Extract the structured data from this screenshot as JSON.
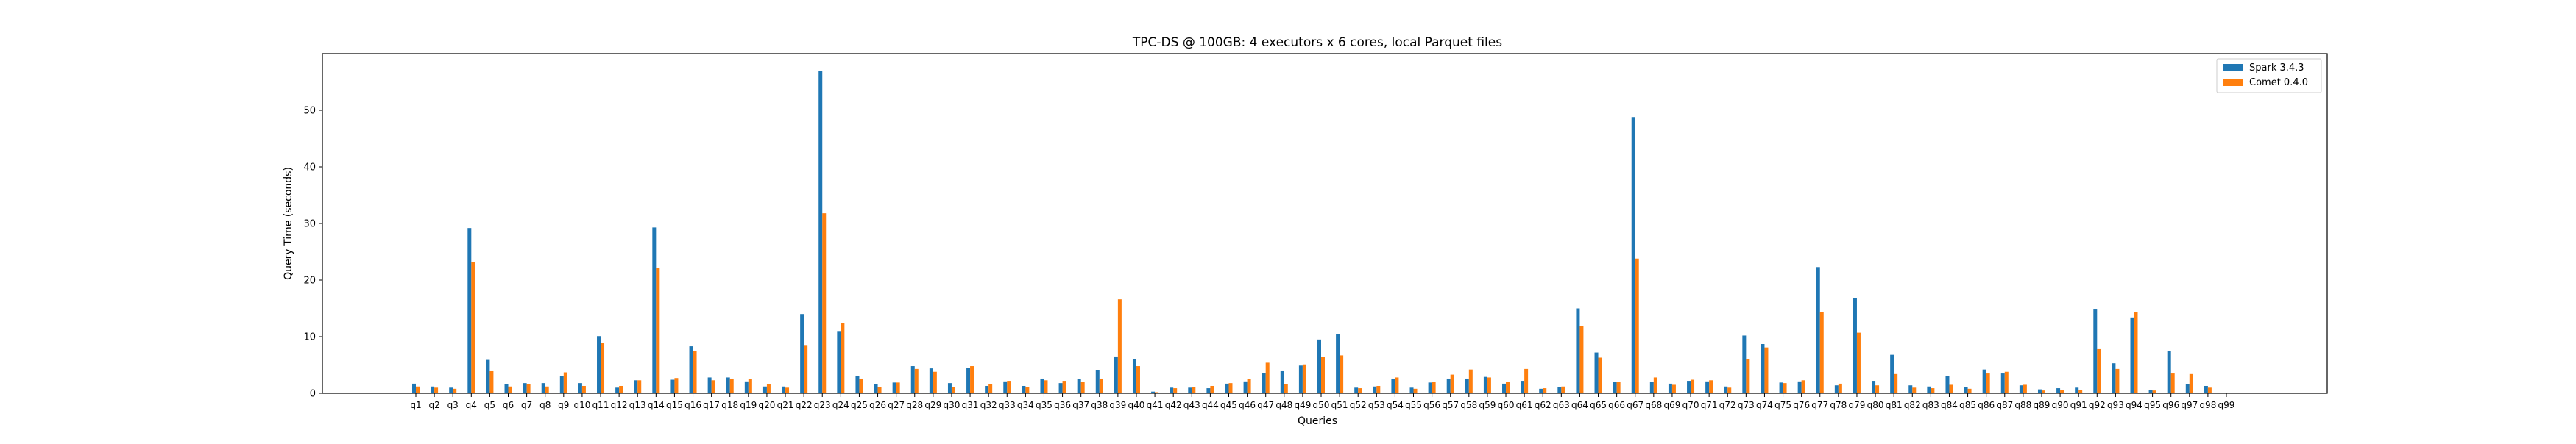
{
  "chart_data": {
    "type": "bar",
    "title": "TPC-DS @ 100GB: 4 executors x 6 cores, local Parquet files",
    "xlabel": "Queries",
    "ylabel": "Query Time (seconds)",
    "ylim": [
      0,
      60
    ],
    "yticks": [
      0,
      10,
      20,
      30,
      40,
      50
    ],
    "legend_position": "top-right",
    "grid": false,
    "categories": [
      "q1",
      "q2",
      "q3",
      "q4",
      "q5",
      "q6",
      "q7",
      "q8",
      "q9",
      "q10",
      "q11",
      "q12",
      "q13",
      "q14",
      "q15",
      "q16",
      "q17",
      "q18",
      "q19",
      "q20",
      "q21",
      "q22",
      "q23",
      "q24",
      "q25",
      "q26",
      "q27",
      "q28",
      "q29",
      "q30",
      "q31",
      "q32",
      "q33",
      "q34",
      "q35",
      "q36",
      "q37",
      "q38",
      "q39",
      "q40",
      "q41",
      "q42",
      "q43",
      "q44",
      "q45",
      "q46",
      "q47",
      "q48",
      "q49",
      "q50",
      "q51",
      "q52",
      "q53",
      "q54",
      "q55",
      "q56",
      "q57",
      "q58",
      "q59",
      "q60",
      "q61",
      "q62",
      "q63",
      "q64",
      "q65",
      "q66",
      "q67",
      "q68",
      "q69",
      "q70",
      "q71",
      "q72",
      "q73",
      "q74",
      "q75",
      "q76",
      "q77",
      "q78",
      "q79",
      "q80",
      "q81",
      "q82",
      "q83",
      "q84",
      "q85",
      "q86",
      "q87",
      "q88",
      "q89",
      "q90",
      "q91",
      "q92",
      "q93",
      "q94",
      "q95",
      "q96",
      "q97",
      "q98",
      "q99"
    ],
    "series": [
      {
        "name": "Spark 3.4.3",
        "color": "#1f77b4",
        "values": [
          1.7,
          1.2,
          1.0,
          29.2,
          5.9,
          1.6,
          1.8,
          1.8,
          3.0,
          1.8,
          10.1,
          1.0,
          2.3,
          29.3,
          2.4,
          8.3,
          2.8,
          2.8,
          2.1,
          1.2,
          1.2,
          14.0,
          57.0,
          11.0,
          3.0,
          1.6,
          1.9,
          4.8,
          4.4,
          1.8,
          4.5,
          1.3,
          2.1,
          1.3,
          2.6,
          1.8,
          2.5,
          4.1,
          6.5,
          6.1,
          0.3,
          1.0,
          1.0,
          0.9,
          1.7,
          2.1,
          3.6,
          3.9,
          4.9,
          9.5,
          10.5,
          1.0,
          1.2,
          2.6,
          1.0,
          1.9,
          2.6,
          2.6,
          2.9,
          1.7,
          2.2,
          0.8,
          1.1,
          15.0,
          7.2,
          2.0,
          48.8,
          2.0,
          1.7,
          2.2,
          2.1,
          1.2,
          10.2,
          8.7,
          1.9,
          2.1,
          22.3,
          1.4,
          16.8,
          2.2,
          6.8,
          1.4,
          1.2,
          3.1,
          1.1,
          4.2,
          3.5,
          1.4,
          0.7,
          0.9,
          1.0,
          14.8,
          5.3,
          13.4,
          0.6,
          7.5,
          1.6,
          1.3,
          0.0
        ]
      },
      {
        "name": "Comet 0.4.0",
        "color": "#ff7f0e",
        "values": [
          1.2,
          1.0,
          0.8,
          23.2,
          3.9,
          1.2,
          1.6,
          1.2,
          3.7,
          1.3,
          8.9,
          1.3,
          2.3,
          22.2,
          2.7,
          7.5,
          2.3,
          2.6,
          2.5,
          1.6,
          1.0,
          8.4,
          31.8,
          12.4,
          2.6,
          1.1,
          1.9,
          4.3,
          3.8,
          1.1,
          4.8,
          1.6,
          2.2,
          1.1,
          2.3,
          2.2,
          2.0,
          2.6,
          16.6,
          4.8,
          0.2,
          0.9,
          1.1,
          1.3,
          1.8,
          2.5,
          5.4,
          1.6,
          5.1,
          6.4,
          6.7,
          0.9,
          1.3,
          2.8,
          0.8,
          2.0,
          3.3,
          4.2,
          2.8,
          2.0,
          4.3,
          0.9,
          1.2,
          11.9,
          6.3,
          2.0,
          23.8,
          2.8,
          1.5,
          2.4,
          2.3,
          1.0,
          6.0,
          8.1,
          1.8,
          2.3,
          14.3,
          1.7,
          10.7,
          1.4,
          3.4,
          1.0,
          0.9,
          1.5,
          0.8,
          3.5,
          3.8,
          1.5,
          0.5,
          0.6,
          0.6,
          7.8,
          4.3,
          14.3,
          0.5,
          3.5,
          3.4,
          1.0,
          0.0
        ]
      }
    ]
  }
}
